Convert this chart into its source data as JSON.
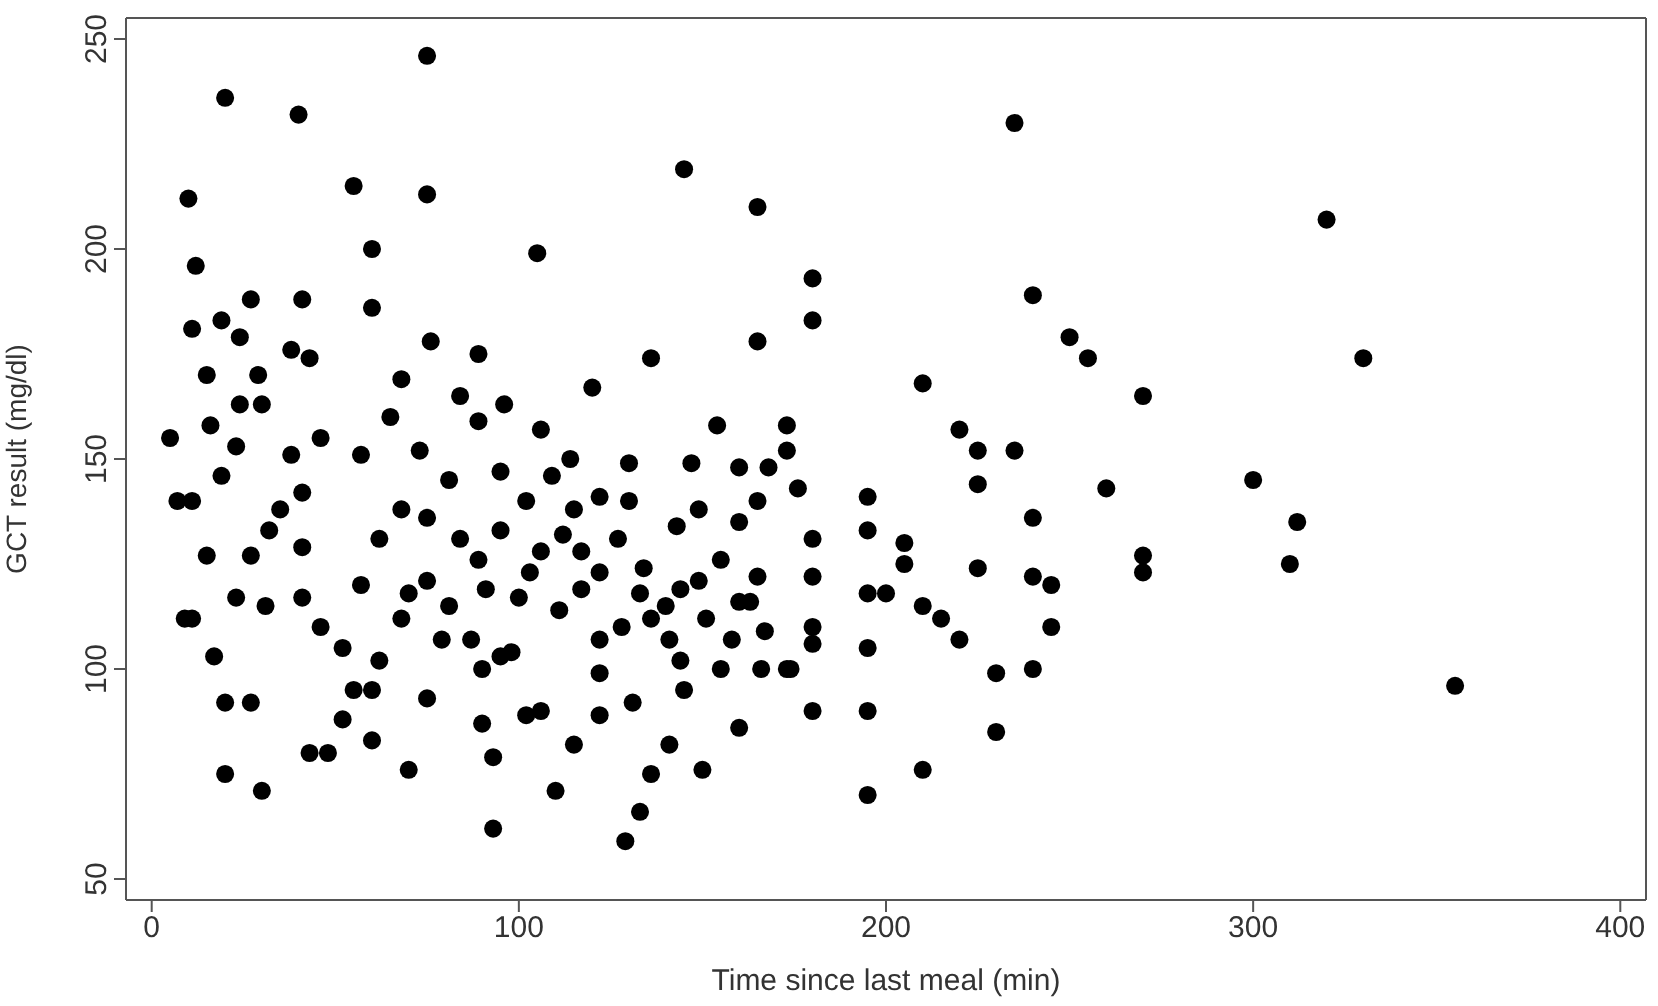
{
  "chart_data": {
    "type": "scatter",
    "xlabel": "Time since last meal (min)",
    "ylabel": "GCT result  (mg/dl)",
    "xlim": [
      -7,
      407
    ],
    "ylim": [
      45,
      255
    ],
    "xticks": [
      0,
      100,
      200,
      300,
      400
    ],
    "yticks": [
      50,
      100,
      150,
      200,
      250
    ],
    "marker": "circle",
    "x": [
      5,
      10,
      12,
      20,
      40,
      75,
      75,
      55,
      60,
      60,
      105,
      145,
      165,
      180,
      180,
      165,
      235,
      240,
      250,
      255,
      270,
      320,
      330,
      300,
      312,
      310,
      270,
      270,
      355,
      260,
      240,
      240,
      245,
      245,
      240,
      230,
      230,
      225,
      220,
      225,
      210,
      235,
      225,
      215,
      220,
      210,
      210,
      195,
      195,
      195,
      205,
      205,
      195,
      195,
      195,
      200,
      180,
      180,
      180,
      180,
      180,
      173,
      165,
      160,
      165,
      173,
      166,
      155,
      151,
      145,
      150,
      160,
      136,
      141,
      129,
      133,
      147,
      149,
      143,
      136,
      140,
      133,
      131,
      122,
      122,
      122,
      117,
      111,
      106,
      112,
      109,
      120,
      130,
      130,
      106,
      102,
      115,
      122,
      110,
      93,
      93,
      90,
      90,
      95,
      100,
      95,
      95,
      89,
      96,
      89,
      84,
      76,
      73,
      81,
      75,
      75,
      79,
      75,
      70,
      62,
      60,
      52,
      48,
      43,
      46,
      41,
      41,
      35,
      41,
      38,
      46,
      43,
      38,
      41,
      27,
      24,
      29,
      24,
      23,
      16,
      15,
      11,
      19,
      30,
      19,
      11,
      15,
      11,
      17,
      20,
      20,
      30,
      27,
      23,
      27,
      31,
      32,
      7,
      9,
      57,
      62,
      68,
      57,
      52,
      68,
      60,
      55,
      81,
      70,
      65,
      68,
      87,
      91,
      102,
      106,
      114,
      115,
      117,
      122,
      127,
      134,
      144,
      149,
      155,
      158,
      163,
      167,
      174,
      160,
      168,
      173,
      176,
      160,
      154,
      144,
      141,
      136,
      128,
      84,
      89,
      103,
      98
    ],
    "series": [
      {
        "color": "#000000",
        "values": [
          155,
          212,
          196,
          236,
          232,
          246,
          213,
          215,
          200,
          186,
          199,
          219,
          210,
          193,
          183,
          178,
          230,
          189,
          179,
          174,
          165,
          207,
          174,
          145,
          135,
          125,
          127,
          123,
          96,
          143,
          136,
          122,
          120,
          110,
          100,
          99,
          85,
          144,
          157,
          152,
          168,
          152,
          124,
          112,
          107,
          115,
          76,
          70,
          90,
          105,
          130,
          125,
          141,
          133,
          118,
          118,
          110,
          106,
          90,
          131,
          122,
          158,
          140,
          135,
          122,
          100,
          100,
          100,
          112,
          95,
          76,
          86,
          75,
          82,
          59,
          66,
          149,
          138,
          134,
          174,
          115,
          118,
          92,
          99,
          107,
          123,
          119,
          114,
          128,
          132,
          146,
          167,
          149,
          140,
          90,
          89,
          82,
          89,
          71,
          79,
          62,
          87,
          100,
          103,
          117,
          133,
          147,
          159,
          163,
          175,
          165,
          178,
          152,
          145,
          136,
          121,
          107,
          93,
          76,
          102,
          83,
          88,
          80,
          80,
          110,
          117,
          129,
          138,
          142,
          151,
          155,
          174,
          176,
          188,
          188,
          179,
          170,
          163,
          153,
          158,
          170,
          181,
          183,
          163,
          146,
          140,
          127,
          112,
          103,
          92,
          75,
          71,
          92,
          117,
          127,
          115,
          133,
          140,
          112,
          151,
          131,
          112,
          120,
          105,
          138,
          95,
          95,
          115,
          118,
          160,
          169,
          107,
          119,
          140,
          157,
          150,
          138,
          128,
          141,
          131,
          124,
          119,
          121,
          126,
          107,
          116,
          109,
          100,
          116,
          148,
          152,
          143,
          148,
          158,
          102,
          107,
          112,
          110,
          131,
          126,
          123,
          104
        ]
      }
    ]
  }
}
